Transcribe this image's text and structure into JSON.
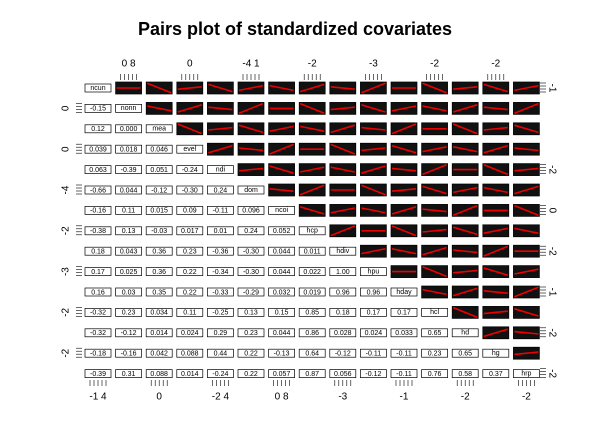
{
  "title": "Pairs plot of standardized covariates",
  "variables": [
    "ncun",
    "nonn",
    "mea",
    "evel",
    "ndi",
    "dom",
    "ncoi",
    "hcp",
    "hdiv",
    "hpu",
    "hday",
    "hcl",
    "hd",
    "hg",
    "hrp"
  ],
  "correlations": [
    [],
    [
      "-0.15"
    ],
    [
      "0.12",
      "0.000"
    ],
    [
      "0.039",
      "0.018",
      "0.046"
    ],
    [
      "0.063",
      "-0.39",
      "0.051",
      "-0.24"
    ],
    [
      "-0.66",
      "0.044",
      "-0.12",
      "-0.30",
      "0.24"
    ],
    [
      "-0.16",
      "0.11",
      "0.015",
      "0.09",
      "-0.11",
      "0.096"
    ],
    [
      "-0.38",
      "0.13",
      "-0.03",
      "0.017",
      "0.01",
      "0.24",
      "0.052"
    ],
    [
      "0.18",
      "0.043",
      "0.36",
      "0.23",
      "-0.36",
      "-0.30",
      "0.044",
      "0.011"
    ],
    [
      "0.17",
      "0.025",
      "0.36",
      "0.22",
      "-0.34",
      "-0.30",
      "0.044",
      "0.022",
      "1.00"
    ],
    [
      "0.16",
      "0.03",
      "0.35",
      "0.22",
      "-0.33",
      "-0.29",
      "0.032",
      "0.019",
      "0.96",
      "0.96"
    ],
    [
      "-0.32",
      "0.23",
      "0.034",
      "0.11",
      "-0.25",
      "0.13",
      "0.15",
      "0.85",
      "0.18",
      "0.17",
      "0.17"
    ],
    [
      "-0.32",
      "-0.12",
      "0.014",
      "0.024",
      "0.29",
      "0.23",
      "0.044",
      "0.86",
      "0.028",
      "0.024",
      "0.033",
      "0.65"
    ],
    [
      "-0.18",
      "-0.16",
      "0.042",
      "0.088",
      "0.44",
      "0.22",
      "-0.13",
      "0.64",
      "-0.12",
      "-0.11",
      "-0.11",
      "0.23",
      "0.65"
    ],
    [
      "-0.39",
      "0.31",
      "0.088",
      "0.014",
      "-0.24",
      "0.22",
      "0.057",
      "0.87",
      "0.056",
      "-0.12",
      "-0.11",
      "0.76",
      "0.58",
      "0.37"
    ]
  ],
  "axis_labels": {
    "top": [
      null,
      "0 8",
      null,
      "0",
      null,
      "-4 1",
      null,
      "-2",
      null,
      "-3",
      null,
      "-2",
      null,
      "-2",
      null
    ],
    "bottom": [
      "-1 4",
      null,
      "0",
      null,
      "-2 4",
      null,
      "0 8",
      null,
      "-3",
      null,
      "-1",
      null,
      "-2",
      null,
      "-2"
    ],
    "left": [
      null,
      "0",
      null,
      "0",
      null,
      "-4",
      null,
      "-2",
      null,
      "-3",
      null,
      "-2",
      null,
      "-2",
      null
    ],
    "right": [
      "-1",
      null,
      null,
      null,
      "-2",
      null,
      "0",
      null,
      "-2",
      null,
      "-1",
      null,
      "-2",
      null,
      "-2"
    ]
  }
}
